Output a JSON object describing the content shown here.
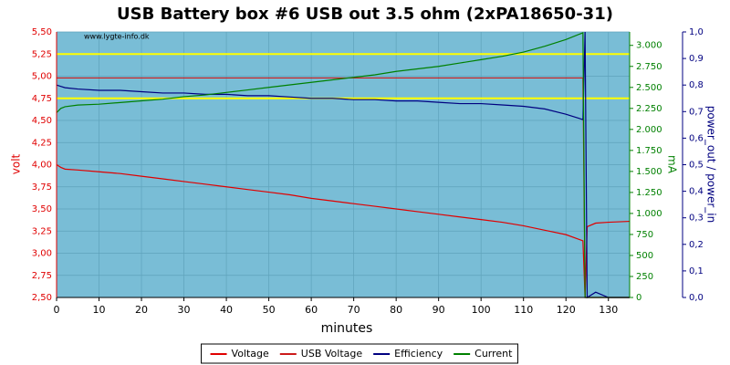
{
  "chart_data": {
    "type": "line",
    "title": "USB Battery box #6 USB out 3.5 ohm (2xPA18650-31)",
    "annotation": "www.lygte-info.dk",
    "xlabel": "minutes",
    "ylabel": "volt",
    "y2label": "mA",
    "y3label": "power_out / power_in",
    "grid": true,
    "background": "#79bdd6",
    "legend": "bottom",
    "xlim": [
      0,
      135
    ],
    "xticks": [
      0,
      10,
      20,
      30,
      40,
      50,
      60,
      70,
      80,
      90,
      100,
      110,
      120,
      130
    ],
    "ylim": [
      2.5,
      5.5
    ],
    "yticks": [
      {
        "value": 2.5,
        "label": "2,50"
      },
      {
        "value": 2.75,
        "label": "2,75"
      },
      {
        "value": 3.0,
        "label": "3,00"
      },
      {
        "value": 3.25,
        "label": "3,25"
      },
      {
        "value": 3.5,
        "label": "3,50"
      },
      {
        "value": 3.75,
        "label": "3,75"
      },
      {
        "value": 4.0,
        "label": "4,00"
      },
      {
        "value": 4.25,
        "label": "4,25"
      },
      {
        "value": 4.5,
        "label": "4,50"
      },
      {
        "value": 4.75,
        "label": "4,75"
      },
      {
        "value": 5.0,
        "label": "5,00"
      },
      {
        "value": 5.25,
        "label": "5,25"
      },
      {
        "value": 5.5,
        "label": "5,50"
      }
    ],
    "y2lim": [
      0,
      3160
    ],
    "y2ticks": [
      0,
      250,
      500,
      750,
      {
        "value": 1000,
        "label": "1.000"
      },
      {
        "value": 1250,
        "label": "1.250"
      },
      {
        "value": 1500,
        "label": "1.500"
      },
      {
        "value": 1750,
        "label": "1.750"
      },
      {
        "value": 2000,
        "label": "2.000"
      },
      {
        "value": 2250,
        "label": "2.250"
      },
      {
        "value": 2500,
        "label": "2.500"
      },
      {
        "value": 2750,
        "label": "2.750"
      },
      {
        "value": 3000,
        "label": "3.000"
      }
    ],
    "y3lim": [
      0,
      1.0
    ],
    "y3ticks": [
      {
        "value": 0,
        "label": "0,0"
      },
      {
        "value": 0.1,
        "label": "0,1"
      },
      {
        "value": 0.2,
        "label": "0,2"
      },
      {
        "value": 0.3,
        "label": "0,3"
      },
      {
        "value": 0.4,
        "label": "0,4"
      },
      {
        "value": 0.5,
        "label": "0,5"
      },
      {
        "value": 0.6,
        "label": "0,6"
      },
      {
        "value": 0.7,
        "label": "0,7"
      },
      {
        "value": 0.8,
        "label": "0,8"
      },
      {
        "value": 0.9,
        "label": "0,9"
      },
      {
        "value": 1.0,
        "label": "1,0"
      }
    ],
    "reference_lines": {
      "color": "#ffff00",
      "values": [
        5.25,
        4.75
      ]
    },
    "x": [
      0,
      1,
      2,
      5,
      10,
      15,
      20,
      25,
      30,
      35,
      40,
      45,
      50,
      55,
      60,
      65,
      70,
      75,
      80,
      85,
      90,
      95,
      100,
      105,
      110,
      115,
      120,
      124,
      124.5,
      125,
      127,
      130,
      135
    ],
    "series": [
      {
        "name": "Voltage",
        "color": "#e00000",
        "axis": "y",
        "values": [
          4.0,
          3.97,
          3.95,
          3.94,
          3.92,
          3.9,
          3.87,
          3.84,
          3.81,
          3.78,
          3.75,
          3.72,
          3.69,
          3.66,
          3.62,
          3.59,
          3.56,
          3.53,
          3.5,
          3.47,
          3.44,
          3.41,
          3.38,
          3.35,
          3.31,
          3.26,
          3.21,
          3.14,
          2.5,
          3.3,
          3.34,
          3.35,
          3.36
        ]
      },
      {
        "name": "USB Voltage",
        "color": "#cc1a1a",
        "axis": "y",
        "values": [
          4.98,
          4.98,
          4.98,
          4.98,
          4.98,
          4.98,
          4.98,
          4.98,
          4.98,
          4.98,
          4.98,
          4.98,
          4.98,
          4.98,
          4.98,
          4.98,
          4.98,
          4.98,
          4.98,
          4.98,
          4.98,
          4.98,
          4.98,
          4.98,
          4.98,
          4.98,
          4.98,
          4.98,
          2.5,
          2.5,
          2.5,
          2.5,
          2.5
        ]
      },
      {
        "name": "Efficiency",
        "color": "#000080",
        "axis": "y3",
        "values": [
          0.8,
          0.795,
          0.79,
          0.785,
          0.78,
          0.78,
          0.775,
          0.77,
          0.77,
          0.765,
          0.765,
          0.76,
          0.76,
          0.755,
          0.75,
          0.75,
          0.745,
          0.745,
          0.74,
          0.74,
          0.735,
          0.73,
          0.73,
          0.725,
          0.72,
          0.71,
          0.69,
          0.67,
          1.0,
          0,
          0.02,
          0,
          0
        ]
      },
      {
        "name": "Current",
        "color": "#008000",
        "axis": "y2",
        "values": [
          2200,
          2250,
          2270,
          2290,
          2300,
          2320,
          2340,
          2360,
          2390,
          2410,
          2440,
          2470,
          2500,
          2530,
          2560,
          2590,
          2620,
          2650,
          2690,
          2720,
          2750,
          2790,
          2830,
          2870,
          2920,
          2990,
          3070,
          3150,
          0,
          0,
          0,
          0,
          0
        ]
      }
    ]
  }
}
